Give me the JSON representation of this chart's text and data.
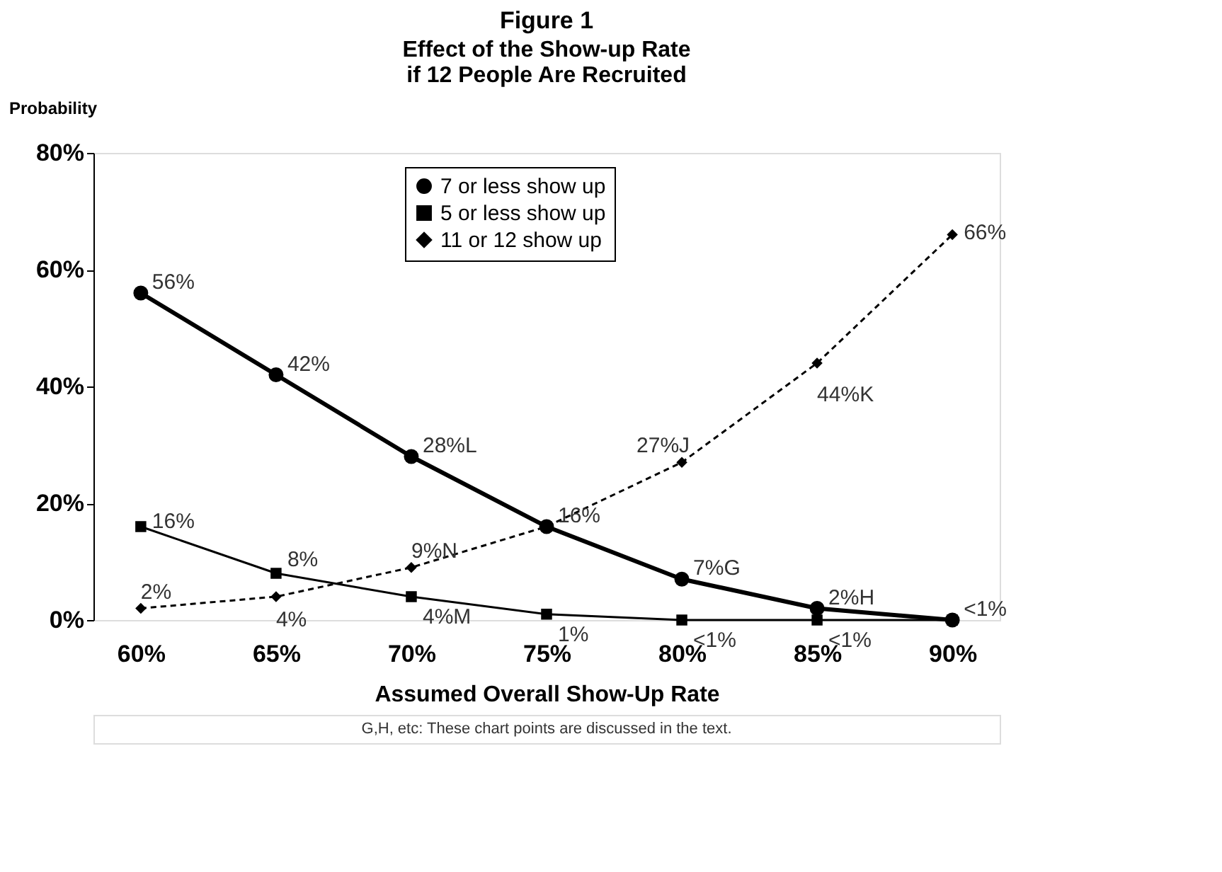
{
  "chart_data": {
    "type": "line",
    "title": "Figure 1",
    "subtitle": [
      "Effect of the Show-up Rate",
      "if 12 People Are Recruited"
    ],
    "xlabel": "Assumed Overall Show-Up Rate",
    "ylabel": "Probability",
    "categories": [
      "60%",
      "65%",
      "70%",
      "75%",
      "80%",
      "85%",
      "90%"
    ],
    "ylim": [
      0,
      80
    ],
    "yticks": [
      {
        "value": 0,
        "label": "0%"
      },
      {
        "value": 20,
        "label": "20%"
      },
      {
        "value": 40,
        "label": "40%"
      },
      {
        "value": 60,
        "label": "60%"
      },
      {
        "value": 80,
        "label": "80%"
      }
    ],
    "grid": false,
    "legend": "top",
    "series": [
      {
        "name": "7 or less show up",
        "color": "#000000",
        "marker": "circle",
        "line_style": "solid",
        "values": [
          56,
          42,
          28,
          16,
          7,
          2,
          0
        ],
        "value_labels": [
          "56%",
          "42%",
          "28%L",
          "16%",
          "7%G",
          "2%H",
          "<1%"
        ]
      },
      {
        "name": "5 or less show up",
        "color": "#000000",
        "marker": "square",
        "line_style": "solid",
        "values": [
          16,
          8,
          4,
          1,
          0,
          0,
          0
        ],
        "value_labels": [
          "16%",
          "8%",
          "4%M",
          "1%",
          "<1%",
          "<1%",
          null
        ]
      },
      {
        "name": "11 or 12 show up",
        "color": "#000000",
        "marker": "diamond",
        "line_style": "dashed",
        "values": [
          2,
          4,
          9,
          16,
          27,
          44,
          66
        ],
        "value_labels": [
          "2%",
          "4%",
          "9%N",
          null,
          "27%J",
          "44%K",
          "66%"
        ]
      }
    ],
    "annotations": [
      "G,H, etc: These chart points are discussed in the text."
    ]
  }
}
